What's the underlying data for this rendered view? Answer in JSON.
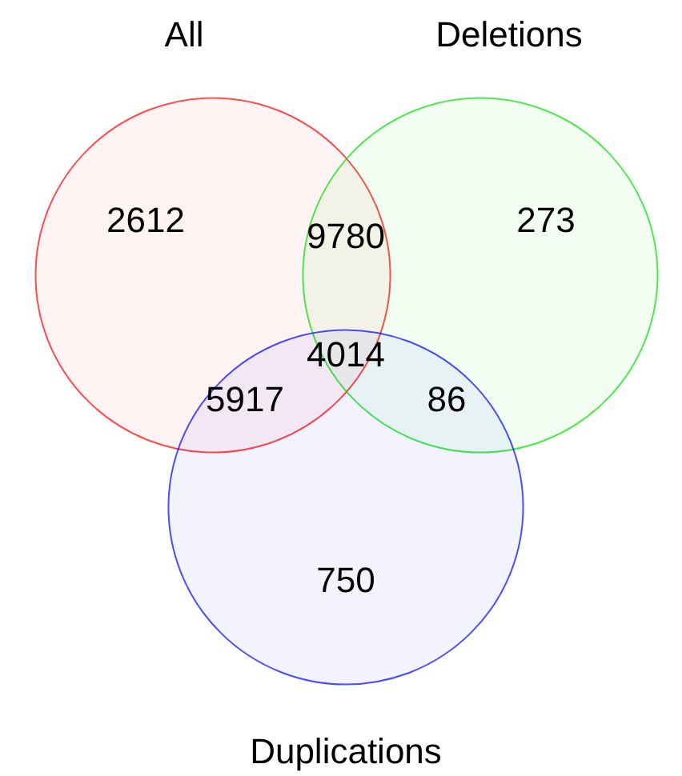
{
  "chart_data": {
    "type": "other",
    "categories": [
      "All",
      "Deletions",
      "Duplications"
    ],
    "colors": [
      "#ff0000",
      "#00e000",
      "#0000ff"
    ],
    "values": [
      2612,
      273,
      750
    ],
    "annotations": [
      "9780",
      "5917",
      "86",
      "4014"
    ],
    "data_labels": true
  }
}
